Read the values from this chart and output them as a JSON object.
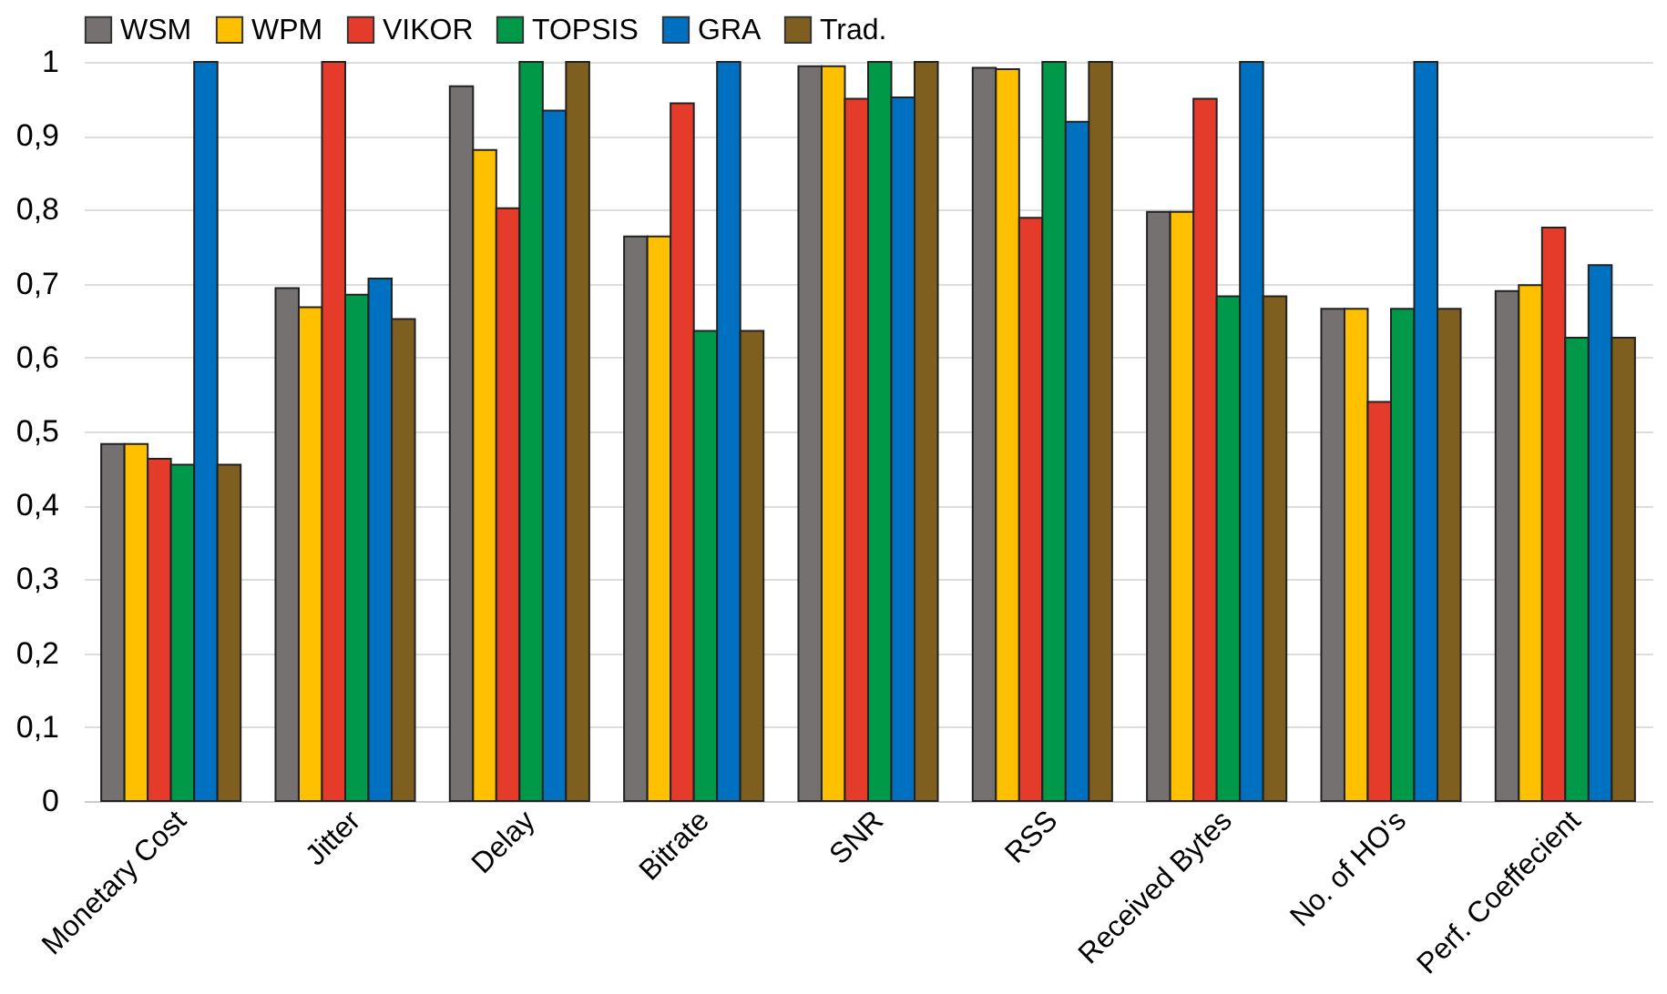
{
  "chart_data": {
    "type": "bar",
    "categories": [
      "Monetary Cost",
      "Jitter",
      "Delay",
      "Bitrate",
      "SNR",
      "RSS",
      "Received Bytes",
      "No. of HO's",
      "Perf. Coeffecient"
    ],
    "series": [
      {
        "name": "WSM",
        "color": "#767171",
        "values": [
          0.483,
          0.694,
          0.967,
          0.764,
          0.994,
          0.992,
          0.797,
          0.666,
          0.69
        ]
      },
      {
        "name": "WPM",
        "color": "#ffc000",
        "values": [
          0.483,
          0.668,
          0.881,
          0.764,
          0.994,
          0.99,
          0.797,
          0.666,
          0.698
        ]
      },
      {
        "name": "VIKOR",
        "color": "#e53b2a",
        "values": [
          0.463,
          1,
          0.802,
          0.944,
          0.95,
          0.789,
          0.95,
          0.54,
          0.776
        ]
      },
      {
        "name": "TOPSIS",
        "color": "#00994a",
        "values": [
          0.455,
          0.685,
          1,
          0.636,
          1,
          1,
          0.683,
          0.666,
          0.627
        ]
      },
      {
        "name": "GRA",
        "color": "#0070c0",
        "values": [
          1,
          0.707,
          0.934,
          1,
          0.952,
          0.919,
          1,
          1,
          0.725
        ]
      },
      {
        "name": "Trad.",
        "color": "#7f5f1f",
        "values": [
          0.455,
          0.652,
          1,
          0.636,
          1,
          1,
          0.683,
          0.666,
          0.627
        ]
      }
    ],
    "ylim": [
      0,
      1
    ],
    "yticks": [
      {
        "value": 0,
        "label": "0"
      },
      {
        "value": 0.1,
        "label": "0,1"
      },
      {
        "value": 0.2,
        "label": "0,2"
      },
      {
        "value": 0.3,
        "label": "0,3"
      },
      {
        "value": 0.4,
        "label": "0,4"
      },
      {
        "value": 0.5,
        "label": "0,5"
      },
      {
        "value": 0.6,
        "label": "0,6"
      },
      {
        "value": 0.7,
        "label": "0,7"
      },
      {
        "value": 0.8,
        "label": "0,8"
      },
      {
        "value": 0.9,
        "label": "0,9"
      },
      {
        "value": 1,
        "label": "1"
      }
    ],
    "grid": "y",
    "legend": "top"
  }
}
